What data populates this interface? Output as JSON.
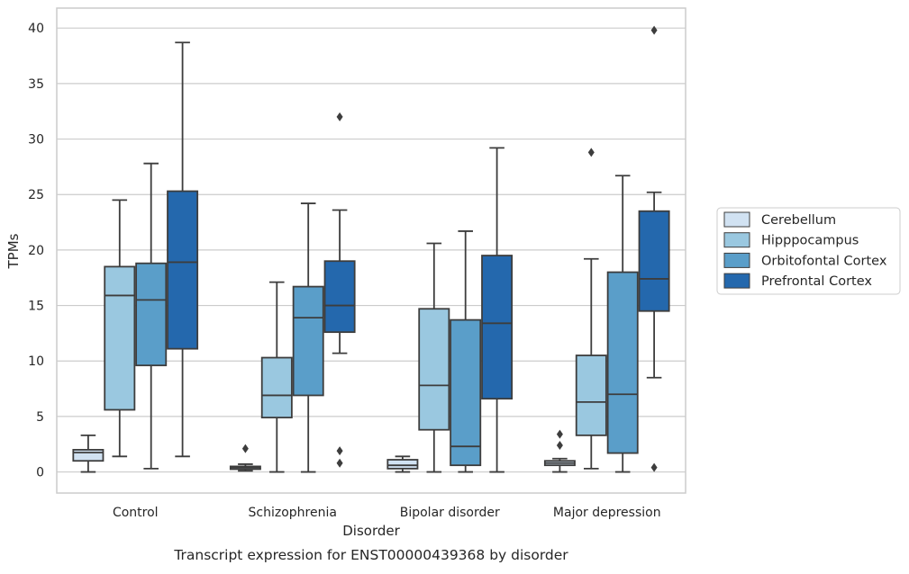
{
  "chart_data": {
    "type": "box",
    "xlabel": "Disorder",
    "ylabel": "TPMs",
    "caption": "Transcript expression for ENST00000439368 by disorder",
    "ylim": [
      -1.9,
      41.8
    ],
    "yticks": [
      0,
      5,
      10,
      15,
      20,
      25,
      30,
      35,
      40
    ],
    "grid": "horizontal",
    "legend_position": "right, outside plot",
    "categories": [
      "Control",
      "Schizophrenia",
      "Bipolar disorder",
      "Major depression"
    ],
    "series": [
      {
        "name": "Cerebellum",
        "color": "#d1e2f2",
        "boxes": [
          {
            "whislo": 0.0,
            "q1": 1.0,
            "med": 1.75,
            "q3": 2.0,
            "whishi": 3.3,
            "fliers": []
          },
          {
            "whislo": 0.1,
            "q1": 0.25,
            "med": 0.4,
            "q3": 0.5,
            "whishi": 0.7,
            "fliers": [
              2.1
            ]
          },
          {
            "whislo": 0.0,
            "q1": 0.3,
            "med": 0.6,
            "q3": 1.1,
            "whishi": 1.4,
            "fliers": []
          },
          {
            "whislo": 0.0,
            "q1": 0.6,
            "med": 0.8,
            "q3": 1.0,
            "whishi": 1.2,
            "fliers": [
              2.4,
              3.4
            ]
          }
        ]
      },
      {
        "name": "Hipppocampus",
        "color": "#9ac8e0",
        "boxes": [
          {
            "whislo": 1.4,
            "q1": 5.6,
            "med": 15.9,
            "q3": 18.5,
            "whishi": 24.5,
            "fliers": []
          },
          {
            "whislo": 0.0,
            "q1": 4.9,
            "med": 6.9,
            "q3": 10.3,
            "whishi": 17.1,
            "fliers": []
          },
          {
            "whislo": 0.0,
            "q1": 3.8,
            "med": 7.8,
            "q3": 14.7,
            "whishi": 20.6,
            "fliers": []
          },
          {
            "whislo": 0.3,
            "q1": 3.3,
            "med": 6.3,
            "q3": 10.5,
            "whishi": 19.2,
            "fliers": [
              28.8
            ]
          }
        ]
      },
      {
        "name": "Orbitofontal Cortex",
        "color": "#5a9ec9",
        "boxes": [
          {
            "whislo": 0.3,
            "q1": 9.6,
            "med": 15.5,
            "q3": 18.8,
            "whishi": 27.8,
            "fliers": []
          },
          {
            "whislo": 0.0,
            "q1": 6.9,
            "med": 13.9,
            "q3": 16.7,
            "whishi": 24.2,
            "fliers": []
          },
          {
            "whislo": 0.0,
            "q1": 0.6,
            "med": 2.3,
            "q3": 13.7,
            "whishi": 21.7,
            "fliers": []
          },
          {
            "whislo": 0.0,
            "q1": 1.7,
            "med": 7.0,
            "q3": 18.0,
            "whishi": 26.7,
            "fliers": []
          }
        ]
      },
      {
        "name": "Prefrontal Cortex",
        "color": "#2468ad",
        "boxes": [
          {
            "whislo": 1.4,
            "q1": 11.1,
            "med": 18.9,
            "q3": 25.3,
            "whishi": 38.7,
            "fliers": []
          },
          {
            "whislo": 10.7,
            "q1": 12.6,
            "med": 15.0,
            "q3": 19.0,
            "whishi": 23.6,
            "fliers": [
              0.8,
              1.9,
              32.0
            ]
          },
          {
            "whislo": 0.0,
            "q1": 6.6,
            "med": 13.4,
            "q3": 19.5,
            "whishi": 29.2,
            "fliers": []
          },
          {
            "whislo": 8.5,
            "q1": 14.5,
            "med": 17.4,
            "q3": 23.5,
            "whishi": 25.2,
            "fliers": [
              0.4,
              39.8
            ]
          }
        ]
      }
    ]
  }
}
